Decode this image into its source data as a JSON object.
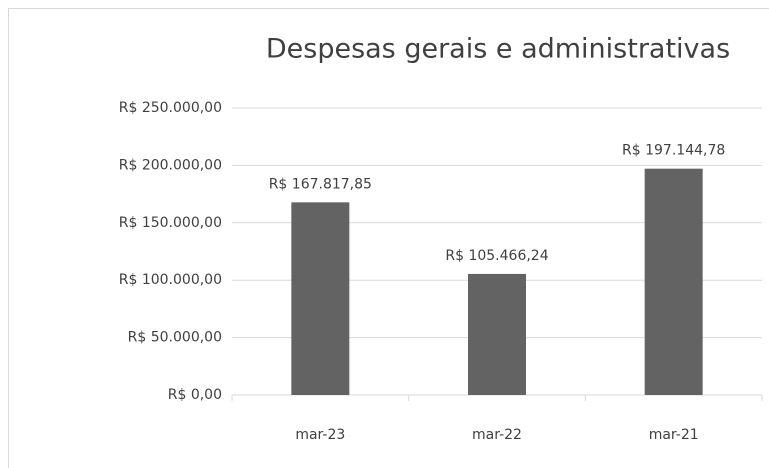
{
  "chart_data": {
    "type": "bar",
    "title": "Despesas gerais e administrativas",
    "categories": [
      "mar-23",
      "mar-22",
      "mar-21"
    ],
    "values": [
      167817.85,
      105466.24,
      197144.78
    ],
    "value_labels": [
      "R$ 167.817,85",
      "R$ 105.466,24",
      "R$ 197.144,78"
    ],
    "color": "#636363",
    "ylim": [
      0,
      250000
    ],
    "yticks": [
      {
        "value": 0,
        "label": "R$ 0,00"
      },
      {
        "value": 50000,
        "label": "R$ 50.000,00"
      },
      {
        "value": 100000,
        "label": "R$ 100.000,00"
      },
      {
        "value": 150000,
        "label": "R$ 150.000,00"
      },
      {
        "value": 200000,
        "label": "R$ 200.000,00"
      },
      {
        "value": 250000,
        "label": "R$ 250.000,00"
      }
    ],
    "grid": true
  }
}
